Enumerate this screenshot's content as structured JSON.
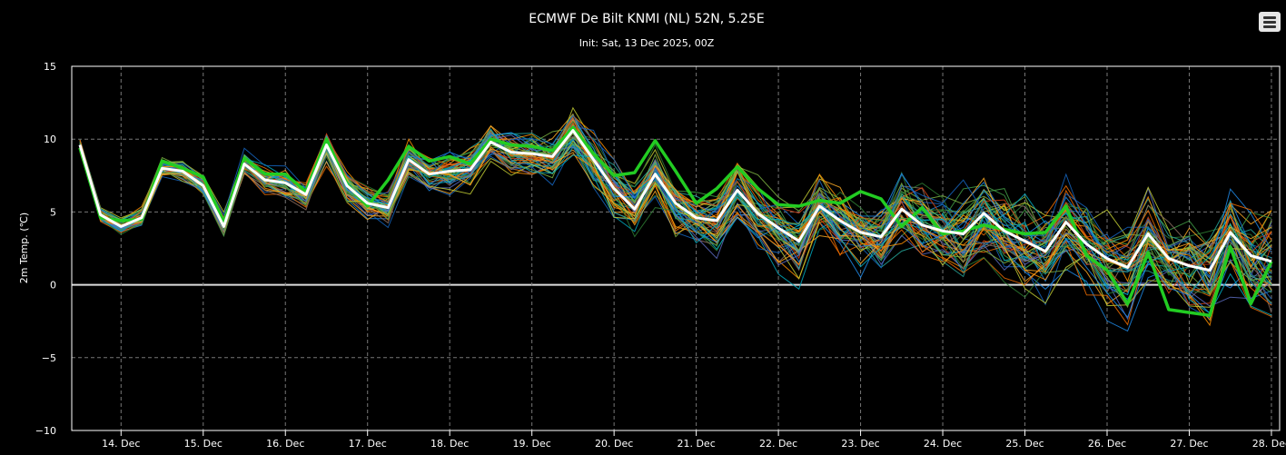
{
  "chart_data": {
    "type": "line",
    "title": "ECMWF De Bilt KNMI (NL) 52N, 5.25E",
    "subtitle": "Init: Sat, 13 Dec 2025, 00Z",
    "ylabel": "2m Temp. (℃)",
    "xlabel": "",
    "ylim": [
      -10,
      15
    ],
    "yticks": [
      15,
      10,
      5,
      0,
      -5,
      -10
    ],
    "xlim_days": [
      13.4,
      28.1
    ],
    "xticks": [
      {
        "day": 14,
        "label": "14. Dec"
      },
      {
        "day": 15,
        "label": "15. Dec"
      },
      {
        "day": 16,
        "label": "16. Dec"
      },
      {
        "day": 17,
        "label": "17. Dec"
      },
      {
        "day": 18,
        "label": "18. Dec"
      },
      {
        "day": 19,
        "label": "19. Dec"
      },
      {
        "day": 20,
        "label": "20. Dec"
      },
      {
        "day": 21,
        "label": "21. Dec"
      },
      {
        "day": 22,
        "label": "22. Dec"
      },
      {
        "day": 23,
        "label": "23. Dec"
      },
      {
        "day": 24,
        "label": "24. Dec"
      },
      {
        "day": 25,
        "label": "25. Dec"
      },
      {
        "day": 26,
        "label": "26. Dec"
      },
      {
        "day": 27,
        "label": "27. Dec"
      },
      {
        "day": 28,
        "label": "28. Dec"
      }
    ],
    "grid": true,
    "x": [
      13.5,
      13.75,
      14,
      14.25,
      14.5,
      14.75,
      15,
      15.25,
      15.5,
      15.75,
      16,
      16.25,
      16.5,
      16.75,
      17,
      17.25,
      17.5,
      17.75,
      18,
      18.25,
      18.5,
      18.75,
      19,
      19.25,
      19.5,
      19.75,
      20,
      20.25,
      20.5,
      20.75,
      21,
      21.25,
      21.5,
      21.75,
      22,
      22.25,
      22.5,
      22.75,
      23,
      23.25,
      23.5,
      23.75,
      24,
      24.25,
      24.5,
      24.75,
      25,
      25.25,
      25.5,
      25.75,
      26,
      26.25,
      26.5,
      26.75,
      27,
      27.25,
      27.5,
      27.75,
      28
    ],
    "ensemble_mean": [
      9.6,
      4.8,
      4.0,
      4.6,
      8.0,
      7.8,
      6.8,
      4.0,
      8.3,
      7.2,
      7.0,
      6.2,
      9.6,
      6.8,
      5.6,
      5.3,
      8.6,
      7.6,
      7.8,
      7.9,
      9.8,
      9.1,
      9.0,
      8.8,
      10.6,
      8.6,
      6.6,
      5.2,
      7.6,
      5.6,
      4.6,
      4.4,
      6.5,
      4.9,
      3.9,
      3.0,
      5.4,
      4.4,
      3.6,
      3.3,
      5.2,
      4.1,
      3.7,
      3.5,
      4.9,
      3.7,
      3.0,
      2.3,
      4.3,
      2.8,
      1.8,
      1.2,
      3.5,
      1.8,
      1.3,
      1.0,
      3.6,
      2.0,
      1.6
    ],
    "control": [
      9.4,
      4.6,
      4.4,
      4.5,
      8.5,
      8.0,
      7.4,
      4.3,
      8.7,
      7.6,
      7.6,
      6.4,
      10.0,
      6.9,
      5.4,
      7.2,
      9.5,
      8.5,
      8.8,
      8.3,
      10.0,
      9.6,
      9.5,
      9.2,
      10.8,
      9.0,
      7.5,
      7.7,
      9.9,
      7.8,
      5.6,
      6.6,
      8.1,
      6.6,
      5.5,
      5.4,
      5.8,
      5.6,
      6.4,
      5.9,
      4.0,
      5.3,
      3.5,
      3.7,
      4.1,
      3.8,
      3.5,
      3.6,
      5.4,
      2.0,
      1.0,
      -1.3,
      2.2,
      -1.7,
      -1.9,
      -2.1,
      2.6,
      -1.3,
      1.6
    ]
  }
}
